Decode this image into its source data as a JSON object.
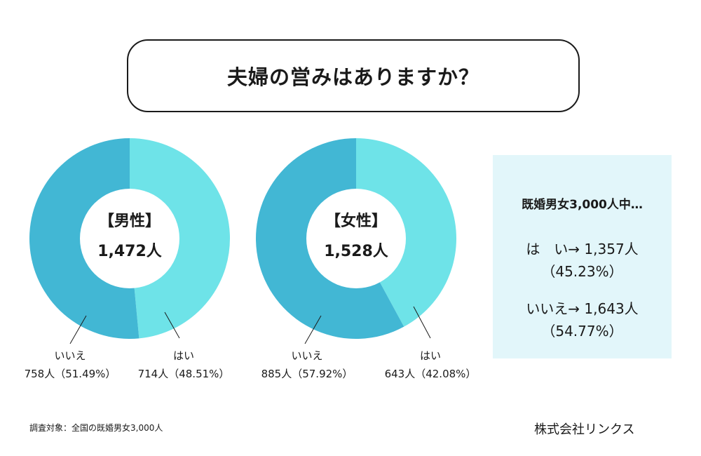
{
  "title": "夫婦の営みはありますか？",
  "colors": {
    "yes": "#6ee3e8",
    "no": "#42b7d4",
    "panel_bg": "#e2f6fa"
  },
  "chart_data": [
    {
      "type": "pie",
      "center_label": "【男性】",
      "center_value": "1,472人",
      "slices": [
        {
          "label": "はい",
          "count": 714,
          "count_text": "714人（48.51%）",
          "percent": 48.51
        },
        {
          "label": "いいえ",
          "count": 758,
          "count_text": "758人（51.49%）",
          "percent": 51.49
        }
      ]
    },
    {
      "type": "pie",
      "center_label": "【女性】",
      "center_value": "1,528人",
      "slices": [
        {
          "label": "はい",
          "count": 643,
          "count_text": "643人（42.08%）",
          "percent": 42.08
        },
        {
          "label": "いいえ",
          "count": 885,
          "count_text": "885人（57.92%）",
          "percent": 57.92
        }
      ]
    }
  ],
  "summary": {
    "heading": "既婚男女3,000人中…",
    "yes_line": "は　い→ 1,357人",
    "yes_pct": "（45.23%）",
    "no_line": "いいえ→ 1,643人",
    "no_pct": "（54.77%）"
  },
  "footnote": "調査対象：全国の既婚男女3,000人",
  "company": "株式会社リンクス"
}
